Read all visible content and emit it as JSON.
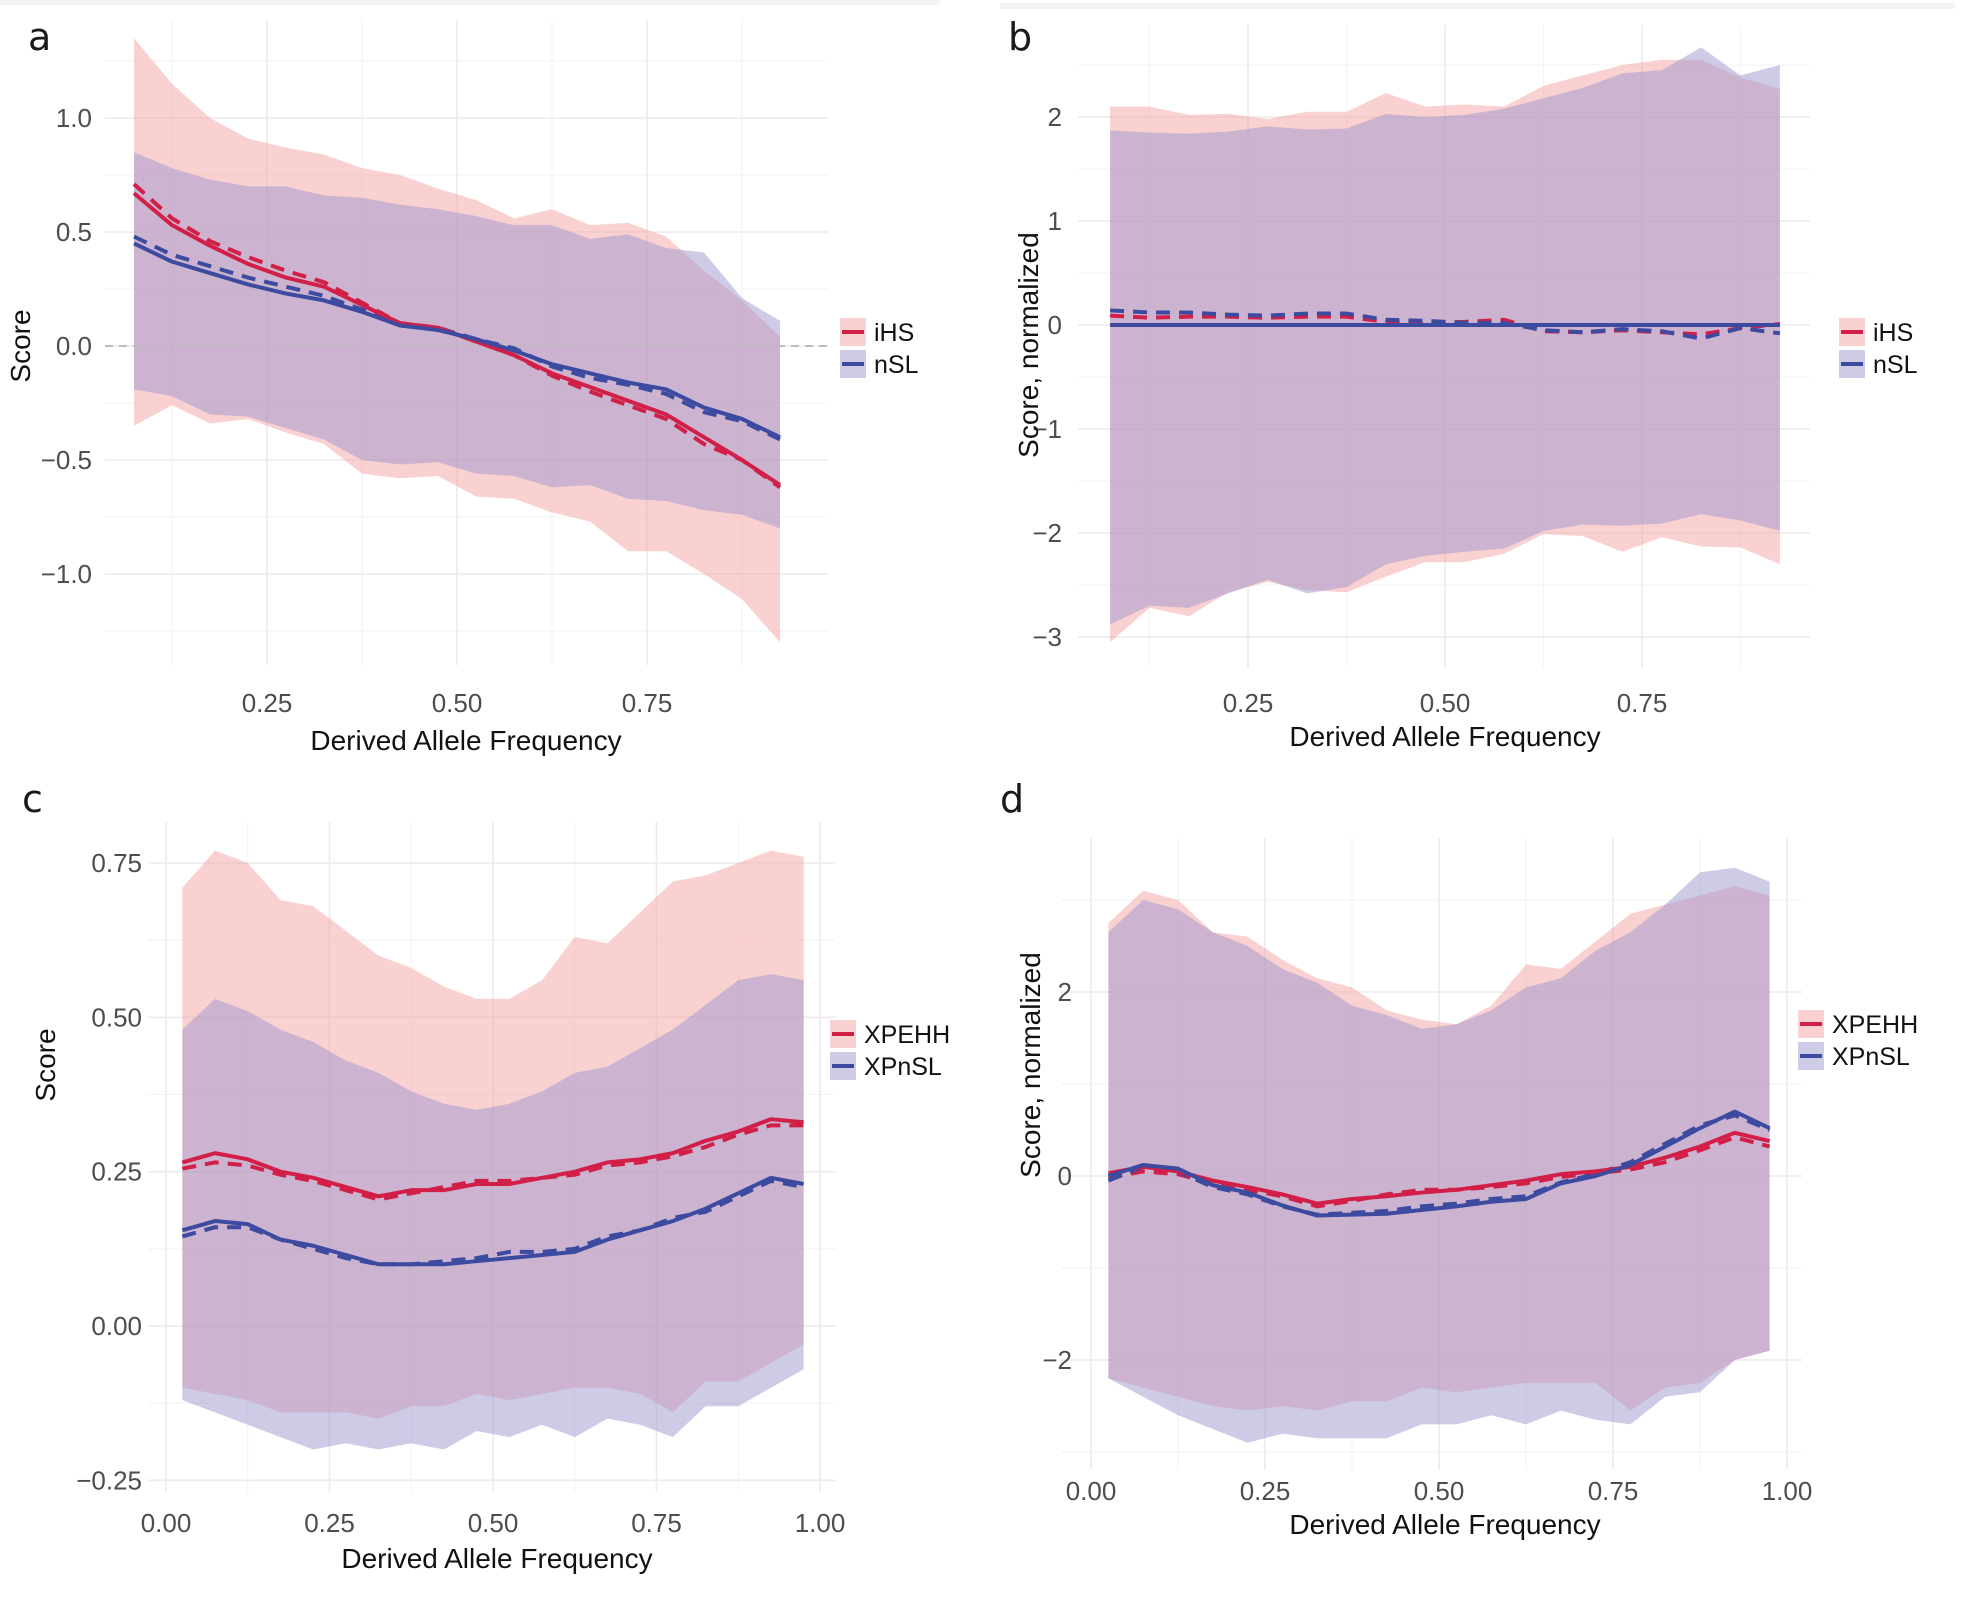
{
  "figure": {
    "panels_letters": [
      "a",
      "b",
      "c",
      "d"
    ]
  },
  "colors": {
    "red_line": "#d11f47",
    "blue_line": "#3c4aa0",
    "red_fill": "#f5a3a3",
    "blue_fill": "#9d98cf",
    "zero_ref": "#bdbdbd"
  },
  "chart_data": [
    {
      "panel": "a",
      "type": "area",
      "title": "",
      "xlabel": "Derived Allele Frequency",
      "ylabel": "Score",
      "xlim": [
        0.05,
        0.95
      ],
      "ylim": [
        -1.3,
        1.35
      ],
      "x_ticks": [
        0.25,
        0.5,
        0.75
      ],
      "x_tick_labels": [
        "0.25",
        "0.50",
        "0.75"
      ],
      "y_ticks": [
        -1.0,
        -0.5,
        0.0,
        0.5,
        1.0
      ],
      "y_tick_labels": [
        "−1.0",
        "−0.5",
        "0.0",
        "0.5",
        "1.0"
      ],
      "zero_reference_line": true,
      "grid": true,
      "legend_position": "right",
      "x": [
        0.075,
        0.125,
        0.175,
        0.225,
        0.275,
        0.325,
        0.375,
        0.425,
        0.475,
        0.525,
        0.575,
        0.625,
        0.675,
        0.725,
        0.775,
        0.825,
        0.875,
        0.925
      ],
      "series": [
        {
          "name": "iHS",
          "color_key": "red",
          "ribbon_upper": [
            1.35,
            1.15,
            1.0,
            0.91,
            0.87,
            0.84,
            0.78,
            0.75,
            0.69,
            0.64,
            0.56,
            0.6,
            0.53,
            0.54,
            0.48,
            0.33,
            0.2,
            0.04
          ],
          "ribbon_lower": [
            -0.35,
            -0.26,
            -0.34,
            -0.32,
            -0.38,
            -0.43,
            -0.56,
            -0.58,
            -0.57,
            -0.66,
            -0.67,
            -0.73,
            -0.77,
            -0.9,
            -0.9,
            -1.0,
            -1.11,
            -1.3
          ],
          "solid": [
            0.67,
            0.53,
            0.44,
            0.36,
            0.3,
            0.26,
            0.18,
            0.1,
            0.08,
            0.02,
            -0.04,
            -0.12,
            -0.18,
            -0.24,
            -0.3,
            -0.4,
            -0.5,
            -0.61
          ],
          "dashed": [
            0.71,
            0.56,
            0.46,
            0.39,
            0.33,
            0.28,
            0.19,
            0.1,
            0.08,
            0.02,
            -0.04,
            -0.13,
            -0.2,
            -0.26,
            -0.32,
            -0.43,
            -0.5,
            -0.62
          ]
        },
        {
          "name": "nSL",
          "color_key": "blue",
          "ribbon_upper": [
            0.85,
            0.78,
            0.73,
            0.7,
            0.7,
            0.66,
            0.65,
            0.62,
            0.6,
            0.57,
            0.53,
            0.53,
            0.47,
            0.49,
            0.43,
            0.41,
            0.21,
            0.11
          ],
          "ribbon_lower": [
            -0.19,
            -0.22,
            -0.3,
            -0.31,
            -0.36,
            -0.41,
            -0.5,
            -0.52,
            -0.51,
            -0.56,
            -0.57,
            -0.62,
            -0.61,
            -0.67,
            -0.68,
            -0.72,
            -0.74,
            -0.8
          ],
          "solid": [
            0.45,
            0.37,
            0.32,
            0.27,
            0.23,
            0.2,
            0.15,
            0.09,
            0.07,
            0.03,
            -0.02,
            -0.08,
            -0.12,
            -0.16,
            -0.19,
            -0.27,
            -0.32,
            -0.4
          ],
          "dashed": [
            0.48,
            0.4,
            0.35,
            0.3,
            0.26,
            0.22,
            0.16,
            0.1,
            0.08,
            0.03,
            -0.01,
            -0.09,
            -0.14,
            -0.17,
            -0.21,
            -0.29,
            -0.33,
            -0.41
          ]
        }
      ]
    },
    {
      "panel": "b",
      "type": "area",
      "title": "",
      "xlabel": "Derived Allele Frequency",
      "ylabel": "Score, normalized",
      "xlim": [
        0.05,
        0.95
      ],
      "ylim": [
        -3.1,
        2.7
      ],
      "x_ticks": [
        0.25,
        0.5,
        0.75
      ],
      "x_tick_labels": [
        "0.25",
        "0.50",
        "0.75"
      ],
      "y_ticks": [
        -3,
        -2,
        -1,
        0,
        1,
        2
      ],
      "y_tick_labels": [
        "−3",
        "−2",
        "−1",
        "0",
        "1",
        "2"
      ],
      "zero_reference_line": false,
      "grid": true,
      "legend_position": "right",
      "x": [
        0.075,
        0.125,
        0.175,
        0.225,
        0.275,
        0.325,
        0.375,
        0.425,
        0.475,
        0.525,
        0.575,
        0.625,
        0.675,
        0.725,
        0.775,
        0.825,
        0.875,
        0.925
      ],
      "series": [
        {
          "name": "iHS",
          "color_key": "red",
          "ribbon_upper": [
            2.1,
            2.1,
            2.02,
            2.03,
            1.98,
            2.05,
            2.05,
            2.23,
            2.1,
            2.12,
            2.1,
            2.3,
            2.4,
            2.5,
            2.55,
            2.55,
            2.38,
            2.27
          ],
          "ribbon_lower": [
            -3.05,
            -2.72,
            -2.8,
            -2.57,
            -2.47,
            -2.55,
            -2.57,
            -2.42,
            -2.28,
            -2.28,
            -2.2,
            -2.01,
            -2.03,
            -2.18,
            -2.04,
            -2.13,
            -2.14,
            -2.3
          ],
          "solid": [
            0,
            0,
            0,
            0,
            0,
            0,
            0,
            0,
            0,
            0,
            0,
            0,
            0,
            0,
            0,
            0,
            0,
            0
          ],
          "dashed": [
            0.09,
            0.07,
            0.08,
            0.08,
            0.07,
            0.08,
            0.08,
            0.03,
            0.02,
            0.03,
            0.05,
            -0.06,
            -0.07,
            -0.05,
            -0.07,
            -0.09,
            -0.03,
            0.01
          ]
        },
        {
          "name": "nSL",
          "color_key": "blue",
          "ribbon_upper": [
            1.87,
            1.85,
            1.84,
            1.86,
            1.91,
            1.88,
            1.89,
            2.03,
            2.0,
            2.02,
            2.08,
            2.18,
            2.28,
            2.42,
            2.45,
            2.67,
            2.4,
            2.5
          ],
          "ribbon_lower": [
            -2.88,
            -2.7,
            -2.72,
            -2.58,
            -2.45,
            -2.58,
            -2.52,
            -2.3,
            -2.22,
            -2.18,
            -2.15,
            -1.98,
            -1.92,
            -1.93,
            -1.91,
            -1.82,
            -1.88,
            -1.98
          ],
          "solid": [
            0,
            0,
            0,
            0,
            0,
            0,
            0,
            0,
            0,
            0,
            0,
            0,
            0,
            0,
            0,
            0,
            0,
            0
          ],
          "dashed": [
            0.14,
            0.12,
            0.12,
            0.1,
            0.09,
            0.11,
            0.11,
            0.05,
            0.04,
            0.02,
            0.02,
            -0.05,
            -0.07,
            -0.04,
            -0.06,
            -0.13,
            -0.03,
            -0.08
          ]
        }
      ]
    },
    {
      "panel": "c",
      "type": "area",
      "title": "",
      "xlabel": "Derived Allele Frequency",
      "ylabel": "Score",
      "xlim": [
        0.0,
        1.0
      ],
      "ylim": [
        -0.25,
        0.78
      ],
      "x_ticks": [
        0.0,
        0.25,
        0.5,
        0.75,
        1.0
      ],
      "x_tick_labels": [
        "0.00",
        "0.25",
        "0.50",
        "0.75",
        "1.00"
      ],
      "y_ticks": [
        -0.25,
        0.0,
        0.25,
        0.5,
        0.75
      ],
      "y_tick_labels": [
        "−0.25",
        "0.00",
        "0.25",
        "0.50",
        "0.75"
      ],
      "zero_reference_line": false,
      "grid": true,
      "legend_position": "right",
      "x": [
        0.025,
        0.075,
        0.125,
        0.175,
        0.225,
        0.275,
        0.325,
        0.375,
        0.425,
        0.475,
        0.525,
        0.575,
        0.625,
        0.675,
        0.725,
        0.775,
        0.825,
        0.875,
        0.925,
        0.975
      ],
      "series": [
        {
          "name": "XPEHH",
          "color_key": "red",
          "ribbon_upper": [
            0.71,
            0.77,
            0.75,
            0.69,
            0.68,
            0.64,
            0.6,
            0.58,
            0.55,
            0.53,
            0.53,
            0.56,
            0.63,
            0.62,
            0.67,
            0.72,
            0.73,
            0.75,
            0.77,
            0.76
          ],
          "ribbon_lower": [
            -0.1,
            -0.11,
            -0.12,
            -0.14,
            -0.14,
            -0.14,
            -0.15,
            -0.13,
            -0.13,
            -0.11,
            -0.12,
            -0.11,
            -0.1,
            -0.1,
            -0.11,
            -0.14,
            -0.09,
            -0.09,
            -0.06,
            -0.03
          ],
          "solid": [
            0.265,
            0.28,
            0.27,
            0.25,
            0.24,
            0.225,
            0.21,
            0.22,
            0.22,
            0.23,
            0.23,
            0.24,
            0.25,
            0.265,
            0.27,
            0.28,
            0.3,
            0.315,
            0.335,
            0.33
          ],
          "dashed": [
            0.255,
            0.265,
            0.26,
            0.245,
            0.235,
            0.22,
            0.205,
            0.215,
            0.225,
            0.235,
            0.235,
            0.24,
            0.245,
            0.26,
            0.265,
            0.275,
            0.29,
            0.31,
            0.325,
            0.325
          ]
        },
        {
          "name": "XPnSL",
          "color_key": "blue",
          "ribbon_upper": [
            0.48,
            0.53,
            0.51,
            0.48,
            0.46,
            0.43,
            0.41,
            0.38,
            0.36,
            0.35,
            0.36,
            0.38,
            0.41,
            0.42,
            0.45,
            0.48,
            0.52,
            0.56,
            0.57,
            0.56
          ],
          "ribbon_lower": [
            -0.12,
            -0.14,
            -0.16,
            -0.18,
            -0.2,
            -0.19,
            -0.2,
            -0.19,
            -0.2,
            -0.17,
            -0.18,
            -0.16,
            -0.18,
            -0.15,
            -0.16,
            -0.18,
            -0.13,
            -0.13,
            -0.1,
            -0.07
          ],
          "solid": [
            0.155,
            0.17,
            0.165,
            0.14,
            0.13,
            0.115,
            0.1,
            0.1,
            0.1,
            0.105,
            0.11,
            0.115,
            0.12,
            0.14,
            0.155,
            0.17,
            0.19,
            0.215,
            0.24,
            0.23
          ],
          "dashed": [
            0.145,
            0.16,
            0.16,
            0.14,
            0.125,
            0.11,
            0.1,
            0.1,
            0.105,
            0.11,
            0.12,
            0.12,
            0.125,
            0.145,
            0.155,
            0.175,
            0.185,
            0.21,
            0.235,
            0.225
          ]
        }
      ]
    },
    {
      "panel": "d",
      "type": "area",
      "title": "",
      "xlabel": "Derived Allele Frequency",
      "ylabel": "Score, normalized",
      "xlim": [
        0.0,
        1.0
      ],
      "ylim": [
        -3.0,
        3.4
      ],
      "x_ticks": [
        0.0,
        0.25,
        0.5,
        0.75,
        1.0
      ],
      "x_tick_labels": [
        "0.00",
        "0.25",
        "0.50",
        "0.75",
        "1.00"
      ],
      "y_ticks": [
        -2,
        0,
        2
      ],
      "y_tick_labels": [
        "−2",
        "0",
        "2"
      ],
      "zero_reference_line": false,
      "grid": true,
      "legend_position": "right",
      "x": [
        0.025,
        0.075,
        0.125,
        0.175,
        0.225,
        0.275,
        0.325,
        0.375,
        0.425,
        0.475,
        0.525,
        0.575,
        0.625,
        0.675,
        0.725,
        0.775,
        0.825,
        0.875,
        0.925,
        0.975
      ],
      "series": [
        {
          "name": "XPEHH",
          "color_key": "red",
          "ribbon_upper": [
            2.75,
            3.1,
            3.0,
            2.65,
            2.6,
            2.35,
            2.15,
            2.05,
            1.8,
            1.7,
            1.65,
            1.85,
            2.3,
            2.25,
            2.55,
            2.85,
            2.95,
            3.05,
            3.15,
            3.05
          ],
          "ribbon_lower": [
            -2.2,
            -2.3,
            -2.4,
            -2.5,
            -2.55,
            -2.5,
            -2.55,
            -2.45,
            -2.45,
            -2.3,
            -2.35,
            -2.3,
            -2.25,
            -2.25,
            -2.25,
            -2.55,
            -2.3,
            -2.25,
            -2.0,
            -1.9
          ],
          "solid": [
            0.03,
            0.1,
            0.05,
            -0.05,
            -0.12,
            -0.2,
            -0.3,
            -0.25,
            -0.22,
            -0.18,
            -0.15,
            -0.1,
            -0.05,
            0.02,
            0.05,
            0.1,
            0.2,
            0.32,
            0.47,
            0.38
          ],
          "dashed": [
            -0.02,
            0.05,
            0.02,
            -0.08,
            -0.15,
            -0.22,
            -0.33,
            -0.27,
            -0.2,
            -0.15,
            -0.15,
            -0.12,
            -0.08,
            -0.01,
            0.03,
            0.07,
            0.15,
            0.28,
            0.42,
            0.32
          ]
        },
        {
          "name": "XPnSL",
          "color_key": "blue",
          "ribbon_upper": [
            2.65,
            3.0,
            2.9,
            2.65,
            2.5,
            2.25,
            2.1,
            1.85,
            1.75,
            1.6,
            1.65,
            1.8,
            2.05,
            2.15,
            2.45,
            2.65,
            2.95,
            3.3,
            3.35,
            3.2
          ],
          "ribbon_lower": [
            -2.2,
            -2.4,
            -2.6,
            -2.75,
            -2.9,
            -2.8,
            -2.85,
            -2.85,
            -2.85,
            -2.7,
            -2.7,
            -2.6,
            -2.7,
            -2.55,
            -2.65,
            -2.7,
            -2.4,
            -2.35,
            -2.0,
            -1.9
          ],
          "solid": [
            0.0,
            0.12,
            0.08,
            -0.1,
            -0.18,
            -0.32,
            -0.43,
            -0.42,
            -0.41,
            -0.37,
            -0.33,
            -0.28,
            -0.25,
            -0.08,
            0.0,
            0.12,
            0.32,
            0.52,
            0.7,
            0.52
          ],
          "dashed": [
            -0.05,
            0.1,
            0.05,
            -0.12,
            -0.2,
            -0.33,
            -0.42,
            -0.4,
            -0.38,
            -0.33,
            -0.3,
            -0.25,
            -0.22,
            -0.07,
            0.02,
            0.15,
            0.35,
            0.55,
            0.66,
            0.5
          ]
        }
      ]
    }
  ]
}
